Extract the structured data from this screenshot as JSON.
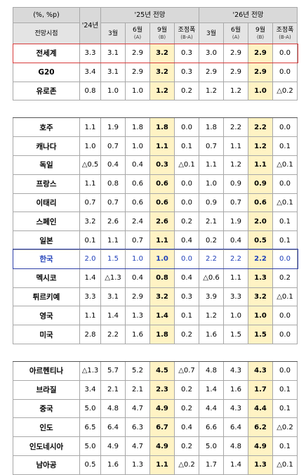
{
  "header": {
    "unit": "(%, %p)",
    "period_label": "전망시점",
    "col_24": "'24년",
    "group_25": "'25년 전망",
    "group_26": "'26년 전망",
    "sub": [
      {
        "main": "3월",
        "sub": ""
      },
      {
        "main": "6월",
        "sub": "(A)"
      },
      {
        "main": "9월",
        "sub": "(B)"
      },
      {
        "main": "조정폭",
        "sub": "(B-A)"
      }
    ]
  },
  "groups": [
    [
      {
        "name": "전세계",
        "v": [
          "3.3",
          "3.1",
          "2.9",
          "3.2",
          "0.3",
          "3.0",
          "2.9",
          "2.9",
          "0.0"
        ]
      },
      {
        "name": "G20",
        "v": [
          "3.4",
          "3.1",
          "2.9",
          "3.2",
          "0.3",
          "2.9",
          "2.9",
          "2.9",
          "0.0"
        ]
      },
      {
        "name": "유로존",
        "v": [
          "0.8",
          "1.0",
          "1.0",
          "1.2",
          "0.2",
          "1.2",
          "1.2",
          "1.0",
          "△0.2"
        ]
      }
    ],
    [
      {
        "name": "호주",
        "v": [
          "1.1",
          "1.9",
          "1.8",
          "1.8",
          "0.0",
          "1.8",
          "2.2",
          "2.2",
          "0.0"
        ]
      },
      {
        "name": "캐나다",
        "v": [
          "1.0",
          "0.7",
          "1.0",
          "1.1",
          "0.1",
          "0.7",
          "1.1",
          "1.2",
          "0.1"
        ]
      },
      {
        "name": "독일",
        "v": [
          "△0.5",
          "0.4",
          "0.4",
          "0.3",
          "△0.1",
          "1.1",
          "1.2",
          "1.1",
          "△0.1"
        ]
      },
      {
        "name": "프랑스",
        "v": [
          "1.1",
          "0.8",
          "0.6",
          "0.6",
          "0.0",
          "1.0",
          "0.9",
          "0.9",
          "0.0"
        ]
      },
      {
        "name": "이태리",
        "v": [
          "0.7",
          "0.7",
          "0.6",
          "0.6",
          "0.0",
          "0.9",
          "0.7",
          "0.6",
          "△0.1"
        ]
      },
      {
        "name": "스페인",
        "v": [
          "3.2",
          "2.6",
          "2.4",
          "2.6",
          "0.2",
          "2.1",
          "1.9",
          "2.0",
          "0.1"
        ]
      },
      {
        "name": "일본",
        "v": [
          "0.1",
          "1.1",
          "0.7",
          "1.1",
          "0.4",
          "0.2",
          "0.4",
          "0.5",
          "0.1"
        ]
      },
      {
        "name": "한국",
        "v": [
          "2.0",
          "1.5",
          "1.0",
          "1.0",
          "0.0",
          "2.2",
          "2.2",
          "2.2",
          "0.0"
        ]
      },
      {
        "name": "멕시코",
        "v": [
          "1.4",
          "△1.3",
          "0.4",
          "0.8",
          "0.4",
          "△0.6",
          "1.1",
          "1.3",
          "0.2"
        ]
      },
      {
        "name": "튀르키예",
        "v": [
          "3.3",
          "3.1",
          "2.9",
          "3.2",
          "0.3",
          "3.9",
          "3.3",
          "3.2",
          "△0.1"
        ]
      },
      {
        "name": "영국",
        "v": [
          "1.1",
          "1.4",
          "1.3",
          "1.4",
          "0.1",
          "1.2",
          "1.0",
          "1.0",
          "0.0"
        ]
      },
      {
        "name": "미국",
        "v": [
          "2.8",
          "2.2",
          "1.6",
          "1.8",
          "0.2",
          "1.6",
          "1.5",
          "1.5",
          "0.0"
        ]
      }
    ],
    [
      {
        "name": "아르헨티나",
        "v": [
          "△1.3",
          "5.7",
          "5.2",
          "4.5",
          "△0.7",
          "4.8",
          "4.3",
          "4.3",
          "0.0"
        ]
      },
      {
        "name": "브라질",
        "v": [
          "3.4",
          "2.1",
          "2.1",
          "2.3",
          "0.2",
          "1.4",
          "1.6",
          "1.7",
          "0.1"
        ]
      },
      {
        "name": "중국",
        "v": [
          "5.0",
          "4.8",
          "4.7",
          "4.9",
          "0.2",
          "4.4",
          "4.3",
          "4.4",
          "0.1"
        ]
      },
      {
        "name": "인도",
        "v": [
          "6.5",
          "6.4",
          "6.3",
          "6.7",
          "0.4",
          "6.6",
          "6.4",
          "6.2",
          "△0.2"
        ]
      },
      {
        "name": "인도네시아",
        "v": [
          "5.0",
          "4.9",
          "4.7",
          "4.9",
          "0.2",
          "5.0",
          "4.8",
          "4.9",
          "0.1"
        ]
      },
      {
        "name": "남아공",
        "v": [
          "0.5",
          "1.6",
          "1.3",
          "1.1",
          "△0.2",
          "1.7",
          "1.4",
          "1.3",
          "△0.1"
        ]
      }
    ]
  ],
  "highlight": {
    "red_row": "전세계",
    "blue_row": "한국"
  }
}
